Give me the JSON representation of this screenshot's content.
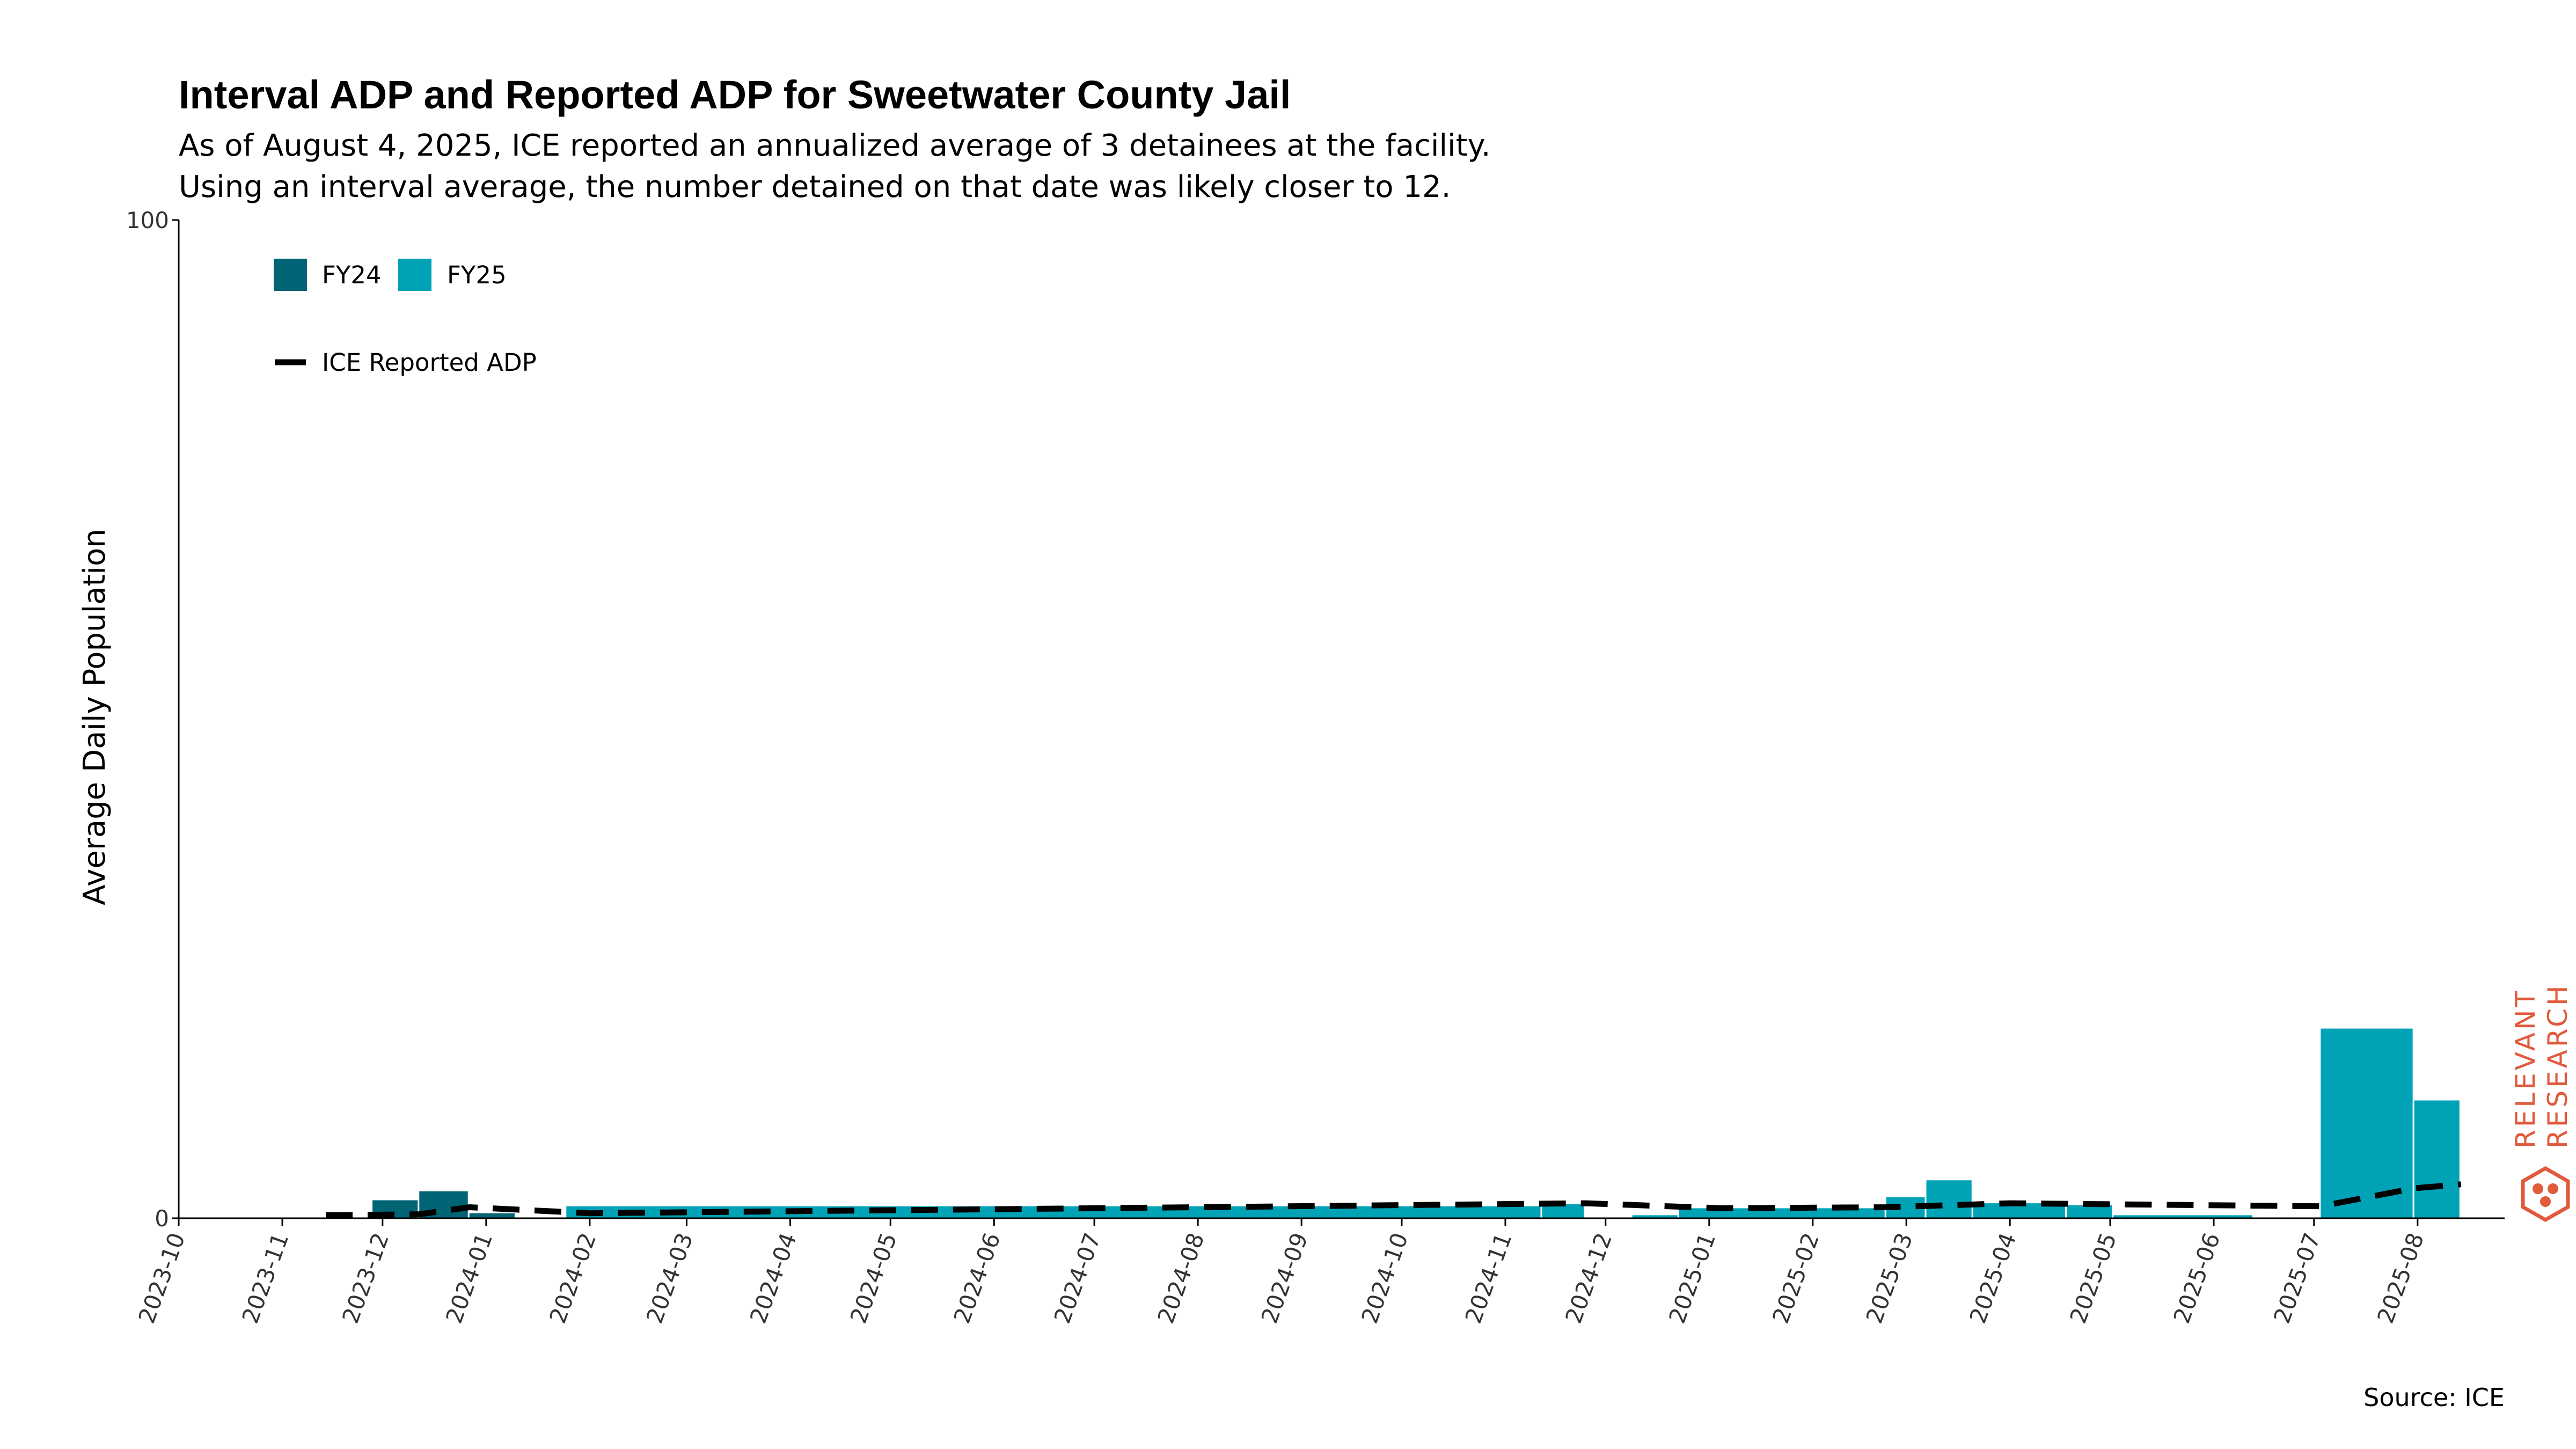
{
  "chart_data": {
    "type": "bar",
    "title": "Interval ADP and Reported ADP for Sweetwater County Jail",
    "subtitle_lines": [
      "As of August 4, 2025, ICE reported an annualized average of 3 detainees at the facility.",
      "Using an interval average, the number detained on that date was likely closer to 12."
    ],
    "ylabel": "Average Daily Population",
    "ylim": [
      0,
      100
    ],
    "y_ticks": [
      "0",
      "100"
    ],
    "x_start": "2023-10-01",
    "x_end": "2025-08-15",
    "x_ticks": [
      "2023-10",
      "2023-11",
      "2023-12",
      "2024-01",
      "2024-02",
      "2024-03",
      "2024-04",
      "2024-05",
      "2024-06",
      "2024-07",
      "2024-08",
      "2024-09",
      "2024-10",
      "2024-11",
      "2024-12",
      "2025-01",
      "2025-02",
      "2025-03",
      "2025-04",
      "2025-05",
      "2025-06",
      "2025-07",
      "2025-08"
    ],
    "colors": {
      "FY24": "#006474",
      "FY25": "#00a3b5",
      "reported": "#000000"
    },
    "legend": {
      "bars": [
        {
          "name": "FY24"
        },
        {
          "name": "FY25"
        }
      ],
      "line": "ICE Reported ADP",
      "position": "top-left"
    },
    "interval_bars": [
      {
        "start": "2023-11-28",
        "end": "2023-12-12",
        "value": 1.8,
        "series": "FY24"
      },
      {
        "start": "2023-12-12",
        "end": "2023-12-27",
        "value": 2.7,
        "series": "FY24"
      },
      {
        "start": "2023-12-27",
        "end": "2024-01-10",
        "value": 0.5,
        "series": "FY24"
      },
      {
        "start": "2024-01-25",
        "end": "2024-11-12",
        "value": 1.2,
        "series": "FY25"
      },
      {
        "start": "2024-11-12",
        "end": "2024-11-25",
        "value": 1.4,
        "series": "FY25"
      },
      {
        "start": "2024-12-09",
        "end": "2024-12-23",
        "value": 0.3,
        "series": "FY25"
      },
      {
        "start": "2024-12-23",
        "end": "2025-02-23",
        "value": 1.0,
        "series": "FY25"
      },
      {
        "start": "2025-02-23",
        "end": "2025-03-07",
        "value": 2.1,
        "series": "FY25"
      },
      {
        "start": "2025-03-07",
        "end": "2025-03-21",
        "value": 3.8,
        "series": "FY25"
      },
      {
        "start": "2025-03-21",
        "end": "2025-04-18",
        "value": 1.5,
        "series": "FY25"
      },
      {
        "start": "2025-04-18",
        "end": "2025-05-02",
        "value": 1.3,
        "series": "FY25"
      },
      {
        "start": "2025-05-02",
        "end": "2025-06-13",
        "value": 0.3,
        "series": "FY25"
      },
      {
        "start": "2025-07-03",
        "end": "2025-07-31",
        "value": 19.0,
        "series": "FY25"
      },
      {
        "start": "2025-07-31",
        "end": "2025-08-14",
        "value": 11.8,
        "series": "FY25"
      }
    ],
    "reported_adp": [
      {
        "date": "2023-11-14",
        "value": 0.3
      },
      {
        "date": "2023-12-12",
        "value": 0.4
      },
      {
        "date": "2023-12-27",
        "value": 1.1
      },
      {
        "date": "2024-02-01",
        "value": 0.5
      },
      {
        "date": "2024-05-01",
        "value": 0.8
      },
      {
        "date": "2024-08-01",
        "value": 1.1
      },
      {
        "date": "2024-11-25",
        "value": 1.5
      },
      {
        "date": "2025-01-05",
        "value": 1.0
      },
      {
        "date": "2025-02-23",
        "value": 1.1
      },
      {
        "date": "2025-04-01",
        "value": 1.5
      },
      {
        "date": "2025-05-02",
        "value": 1.4
      },
      {
        "date": "2025-07-03",
        "value": 1.2
      },
      {
        "date": "2025-07-31",
        "value": 3.0
      },
      {
        "date": "2025-08-14",
        "value": 3.4
      }
    ],
    "source": "Source: ICE",
    "brand_lines": [
      "RELEVANT",
      "RESEARCH"
    ],
    "brand_color": "#e05a3c"
  }
}
